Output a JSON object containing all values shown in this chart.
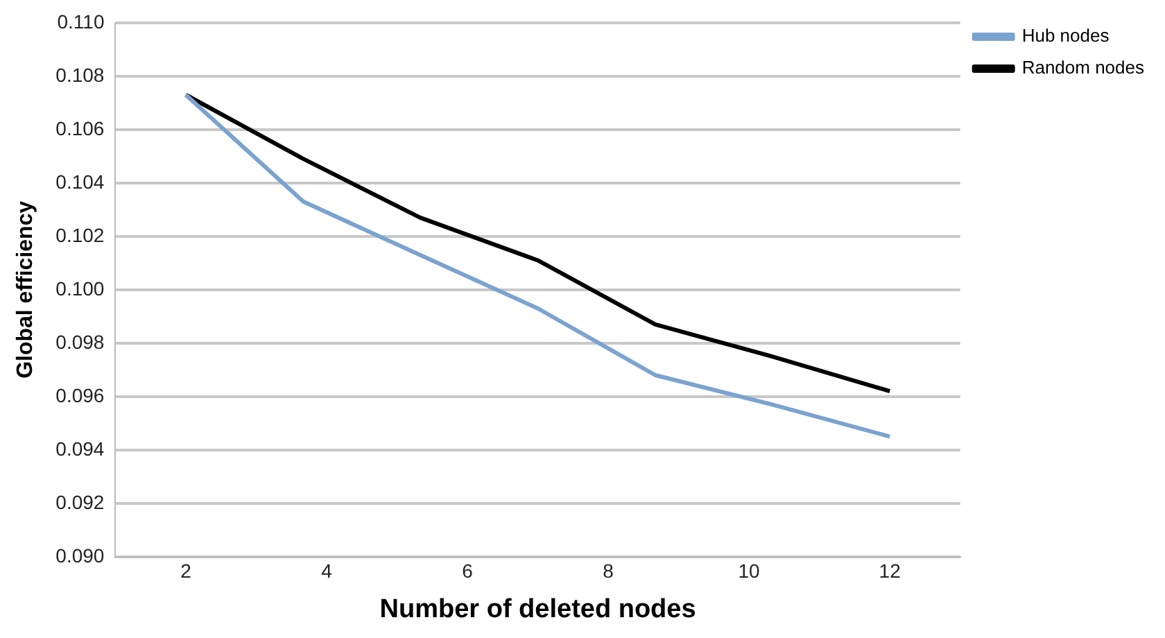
{
  "chart_data": {
    "type": "line",
    "xlabel": "Number of deleted nodes",
    "ylabel": "Global efficiency",
    "x": [
      2,
      3.67,
      5.33,
      7,
      8.67,
      10.33,
      12
    ],
    "series": [
      {
        "name": "Hub nodes",
        "color": "#7ba3d0",
        "values": [
          0.1073,
          0.1033,
          0.1013,
          0.0993,
          0.0968,
          0.0957,
          0.0945
        ]
      },
      {
        "name": "Random nodes",
        "color": "#000000",
        "values": [
          0.1073,
          0.1049,
          0.1027,
          0.1011,
          0.0987,
          0.0975,
          0.0962
        ]
      }
    ],
    "xlim": [
      1,
      13
    ],
    "xticks": [
      2,
      4,
      6,
      8,
      10,
      12
    ],
    "ylim": [
      0.09,
      0.11
    ],
    "yticks": [
      {
        "value": 0.09,
        "label": "0.090"
      },
      {
        "value": 0.092,
        "label": "0.092"
      },
      {
        "value": 0.094,
        "label": "0.094"
      },
      {
        "value": 0.096,
        "label": "0.096"
      },
      {
        "value": 0.098,
        "label": "0.098"
      },
      {
        "value": 0.1,
        "label": "0.100"
      },
      {
        "value": 0.102,
        "label": "0.102"
      },
      {
        "value": 0.104,
        "label": "0.104"
      },
      {
        "value": 0.106,
        "label": "0.106"
      },
      {
        "value": 0.108,
        "label": "0.108"
      },
      {
        "value": 0.11,
        "label": "0.110"
      }
    ],
    "grid": "y",
    "legend": "right",
    "marker": "none",
    "line_style": "solid"
  }
}
